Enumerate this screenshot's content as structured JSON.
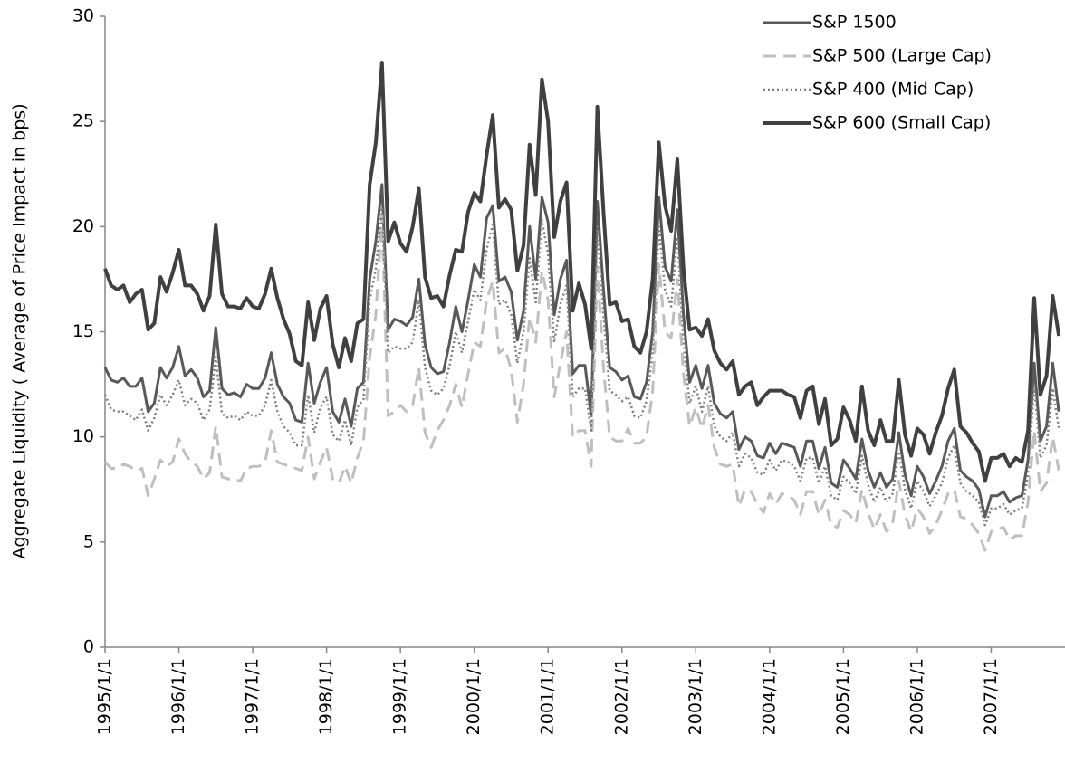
{
  "chart_data": {
    "type": "line",
    "y_label": "Aggregate Liquidity ( Average of Price Impact in bps)",
    "categories": [
      "1995/1/1",
      null,
      null,
      null,
      null,
      null,
      null,
      null,
      null,
      null,
      null,
      null,
      "1996/1/1",
      null,
      null,
      null,
      null,
      null,
      null,
      null,
      null,
      null,
      null,
      null,
      "1997/1/1",
      null,
      null,
      null,
      null,
      null,
      null,
      null,
      null,
      null,
      null,
      null,
      "1998/1/1",
      null,
      null,
      null,
      null,
      null,
      null,
      null,
      null,
      null,
      null,
      null,
      "1999/1/1",
      null,
      null,
      null,
      null,
      null,
      null,
      null,
      null,
      null,
      null,
      null,
      "2000/1/1",
      null,
      null,
      null,
      null,
      null,
      null,
      null,
      null,
      null,
      null,
      null,
      "2001/1/1",
      null,
      null,
      null,
      null,
      null,
      null,
      null,
      null,
      null,
      null,
      null,
      "2002/1/1",
      null,
      null,
      null,
      null,
      null,
      null,
      null,
      null,
      null,
      null,
      null,
      "2003/1/1",
      null,
      null,
      null,
      null,
      null,
      null,
      null,
      null,
      null,
      null,
      null,
      "2004/1/1",
      null,
      null,
      null,
      null,
      null,
      null,
      null,
      null,
      null,
      null,
      null,
      "2005/1/1",
      null,
      null,
      null,
      null,
      null,
      null,
      null,
      null,
      null,
      null,
      null,
      "2006/1/1",
      null,
      null,
      null,
      null,
      null,
      null,
      null,
      null,
      null,
      null,
      null,
      "2007/1/1",
      null,
      null,
      null,
      null,
      null,
      null,
      null,
      null,
      null,
      null,
      null
    ],
    "series": [
      {
        "name": "S&P 1500",
        "color": "#595959",
        "width": 3,
        "dash": "solid",
        "values": [
          13.3,
          12.7,
          12.6,
          12.8,
          12.4,
          12.4,
          12.8,
          11.2,
          11.6,
          13.3,
          12.8,
          13.3,
          14.3,
          12.9,
          13.2,
          12.8,
          11.9,
          12.2,
          15.2,
          12.3,
          12,
          12.1,
          11.9,
          12.5,
          12.3,
          12.3,
          12.8,
          14,
          12.5,
          11.9,
          11.6,
          10.8,
          10.7,
          13.5,
          11.6,
          12.6,
          13.3,
          11.2,
          10.7,
          11.8,
          10.5,
          12.3,
          12.6,
          17.5,
          19.3,
          22,
          15.1,
          15.6,
          15.5,
          15.3,
          15.7,
          17.5,
          14.4,
          13.3,
          13,
          13.1,
          14.5,
          16.2,
          15,
          16.5,
          18.2,
          17.6,
          20.4,
          21,
          17.4,
          17.6,
          16.9,
          14.6,
          16,
          20,
          17.5,
          21.4,
          20.2,
          15.8,
          17.5,
          18.4,
          13,
          13.4,
          13.4,
          11,
          21.2,
          17,
          13.3,
          13.1,
          12.7,
          12.9,
          11.9,
          11.8,
          12.6,
          15,
          21.4,
          18.1,
          17.4,
          20.8,
          15.8,
          12.6,
          13.4,
          12.3,
          13.4,
          11.6,
          11.1,
          10.9,
          11.2,
          9.4,
          10,
          9.8,
          9.1,
          9,
          9.7,
          9.2,
          9.7,
          9.6,
          9.5,
          8.6,
          9.8,
          9.8,
          8.5,
          9.5,
          7.8,
          7.6,
          8.9,
          8.5,
          8,
          9.9,
          8.4,
          7.6,
          8.3,
          7.6,
          8,
          10.2,
          8.2,
          7.2,
          8.6,
          8.1,
          7.3,
          7.9,
          8.6,
          9.8,
          10.4,
          8.4,
          8.1,
          7.9,
          7.5,
          6.2,
          7.2,
          7.2,
          7.4,
          6.9,
          7.1,
          7.2,
          8.9,
          13.5,
          9.8,
          10.5,
          13.5,
          11.2
        ]
      },
      {
        "name": "S&P 500 (Large Cap)",
        "color": "#bfbfbf",
        "width": 3,
        "dash": "dashed",
        "values": [
          8.8,
          8.5,
          8.5,
          8.7,
          8.6,
          8.4,
          8.5,
          7.2,
          8,
          8.9,
          8.6,
          8.8,
          9.9,
          9.2,
          8.8,
          8.6,
          8,
          8.3,
          10.5,
          8.1,
          8,
          8,
          7.9,
          8.5,
          8.6,
          8.6,
          8.8,
          10.3,
          8.8,
          8.7,
          8.6,
          8.5,
          8.4,
          10,
          8,
          8.8,
          9.5,
          8,
          7.8,
          8.6,
          7.8,
          9,
          9.8,
          13.8,
          15.8,
          20.5,
          11,
          11.2,
          11.5,
          11.2,
          11.5,
          13.3,
          10.2,
          9.5,
          10.3,
          10.8,
          11.5,
          12.5,
          11.4,
          13,
          14.5,
          14.3,
          16.5,
          17.4,
          14,
          14.2,
          13.2,
          10.7,
          12.5,
          15.7,
          14.5,
          17.9,
          16.5,
          11.9,
          13.5,
          15,
          10,
          10.3,
          10.3,
          8.6,
          18.1,
          13.3,
          10,
          9.8,
          9.8,
          10.4,
          9.7,
          9.7,
          10,
          12.2,
          18.2,
          15,
          14.7,
          17.5,
          13,
          10.5,
          11.4,
          10.4,
          11.5,
          9.5,
          8.7,
          8.6,
          8.7,
          6.7,
          7.5,
          7.4,
          6.8,
          6.4,
          7.3,
          6.8,
          7.3,
          7.2,
          7,
          6.3,
          7.4,
          7.4,
          6.3,
          7,
          5.8,
          5.7,
          6.5,
          6.3,
          5.9,
          7.5,
          6.4,
          5.6,
          6.3,
          5.5,
          5.9,
          7.9,
          6.3,
          5.5,
          6.6,
          6.2,
          5.4,
          5.8,
          6.5,
          7.3,
          7.5,
          6.2,
          6.1,
          5.8,
          5.4,
          4.6,
          5.5,
          5.6,
          5.7,
          5.1,
          5.3,
          5.3,
          6.9,
          10.3,
          7.4,
          7.8,
          10,
          8.4
        ]
      },
      {
        "name": "S&P 400 (Mid Cap)",
        "color": "#7f7f7f",
        "width": 2.5,
        "dash": "dotted",
        "values": [
          12,
          11.3,
          11.2,
          11.2,
          11,
          10.8,
          11.3,
          10.3,
          10.9,
          12,
          11.5,
          12,
          12.7,
          11.5,
          11.8,
          11.6,
          10.8,
          11.3,
          13.8,
          11.1,
          10.9,
          11,
          10.8,
          11.2,
          11,
          11,
          11.5,
          12.7,
          11.2,
          10.5,
          10.2,
          9.6,
          9.6,
          12,
          10.2,
          11.4,
          11.9,
          10.1,
          9.8,
          10.8,
          9.6,
          11.4,
          11.8,
          16.5,
          18,
          20.9,
          14,
          14.3,
          14.2,
          14.2,
          14.5,
          16.5,
          13.3,
          12.2,
          12,
          12.3,
          13.4,
          15,
          14,
          15.5,
          17,
          16.5,
          18.9,
          20.1,
          16.3,
          16.5,
          15.8,
          13.5,
          15,
          18.5,
          16.4,
          20.3,
          18.7,
          14.5,
          16.3,
          17.2,
          11.9,
          12.3,
          12.3,
          10.3,
          20,
          15.8,
          12.2,
          12,
          11.7,
          11.9,
          11,
          10.9,
          11.7,
          14,
          20,
          17,
          16.2,
          19.5,
          14.5,
          11.6,
          12.4,
          11.2,
          12.4,
          10.5,
          10,
          9.8,
          10.2,
          8.6,
          9.2,
          9,
          8.3,
          8.2,
          8.9,
          8.4,
          8.9,
          8.8,
          8.6,
          7.9,
          9,
          9,
          7.8,
          8.6,
          7.2,
          7,
          8.1,
          7.8,
          7.3,
          9.1,
          7.7,
          6.9,
          7.6,
          6.9,
          7.3,
          9.3,
          7.5,
          6.6,
          7.9,
          7.4,
          6.7,
          7.2,
          7.8,
          9,
          9.6,
          7.8,
          7.4,
          7.2,
          6.9,
          5.8,
          6.6,
          6.6,
          6.8,
          6.3,
          6.5,
          6.6,
          8.2,
          12.5,
          9,
          9.6,
          12.3,
          10.4
        ]
      },
      {
        "name": "S&P 600 (Small Cap)",
        "color": "#404040",
        "width": 4,
        "dash": "solid",
        "values": [
          18,
          17.2,
          17,
          17.2,
          16.4,
          16.8,
          17,
          15.1,
          15.4,
          17.6,
          16.9,
          17.8,
          18.9,
          17.2,
          17.2,
          16.8,
          16,
          16.7,
          20.1,
          16.8,
          16.2,
          16.2,
          16.1,
          16.6,
          16.2,
          16.1,
          16.8,
          18,
          16.6,
          15.6,
          14.9,
          13.6,
          13.4,
          16.4,
          14.6,
          16.1,
          16.7,
          14.4,
          13.3,
          14.7,
          13.6,
          15.4,
          15.6,
          22,
          24,
          27.8,
          19.3,
          20.2,
          19.2,
          18.8,
          20,
          21.8,
          17.6,
          16.6,
          16.7,
          16.2,
          17.7,
          18.9,
          18.8,
          20.7,
          21.6,
          21.2,
          23.4,
          25.3,
          20.9,
          21.3,
          20.8,
          17.9,
          19.1,
          23.9,
          21.5,
          27,
          25,
          19.5,
          21.2,
          22.1,
          16,
          17.3,
          16.3,
          14.2,
          25.7,
          20.7,
          16.3,
          16.4,
          15.5,
          15.6,
          14.3,
          14,
          15,
          17.5,
          24,
          21,
          19.8,
          23.2,
          18,
          15.1,
          15.2,
          14.8,
          15.6,
          14.1,
          13.5,
          13.2,
          13.6,
          12,
          12.4,
          12.6,
          11.5,
          11.9,
          12.2,
          12.2,
          12.2,
          12,
          11.9,
          10.9,
          12.2,
          12.4,
          10.6,
          11.8,
          9.6,
          9.9,
          11.4,
          10.8,
          9.8,
          12.4,
          10.3,
          9.6,
          10.8,
          9.8,
          9.8,
          12.7,
          10.1,
          9.1,
          10.4,
          10.1,
          9.2,
          10.2,
          11,
          12.3,
          13.2,
          10.5,
          10.2,
          9.7,
          9.3,
          7.9,
          9,
          9,
          9.2,
          8.6,
          9,
          8.8,
          10.3,
          16.6,
          12,
          12.9,
          16.7,
          14.8
        ]
      }
    ],
    "ylim": [
      0,
      30
    ],
    "yticks": [
      0,
      5,
      10,
      15,
      20,
      25,
      30
    ],
    "grid": false,
    "legend": "top-right"
  }
}
